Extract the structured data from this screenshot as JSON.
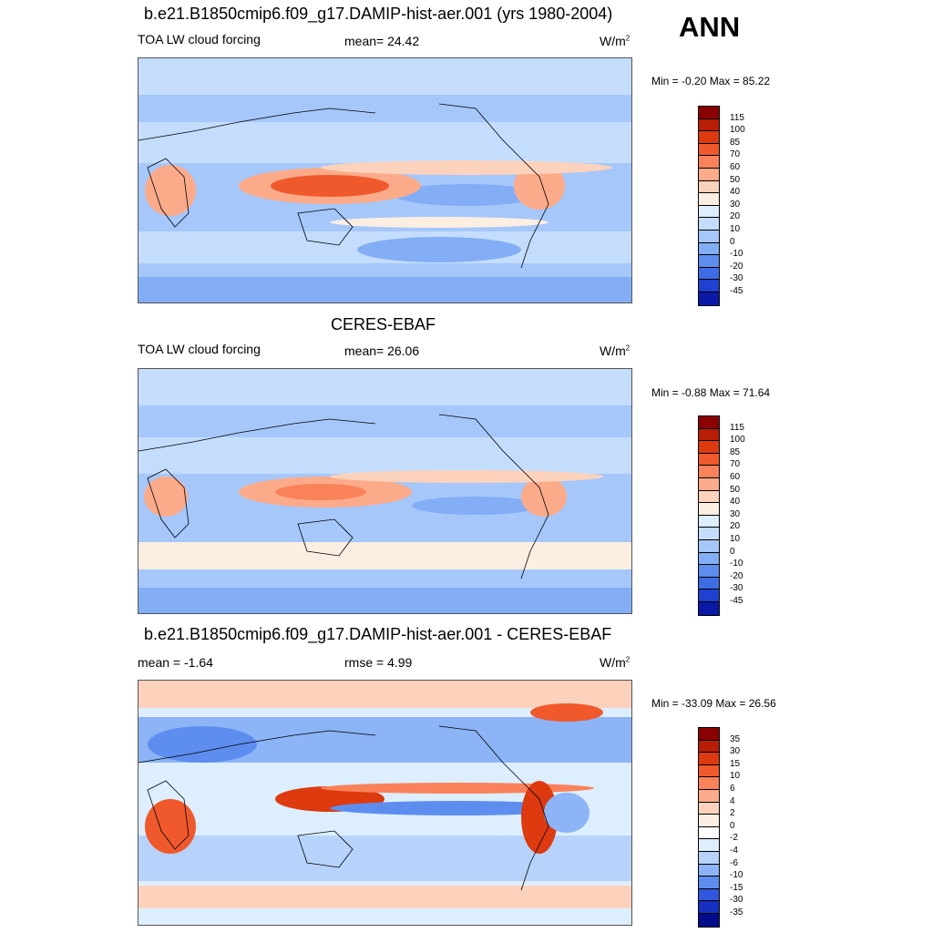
{
  "season": "ANN",
  "panels": [
    {
      "title": "b.e21.B1850cmip6.f09_g17.DAMIP-hist-aer.001 (yrs 1980-2004)",
      "left_label": "TOA LW cloud forcing",
      "center_label": "mean=  24.42",
      "units": "W/m",
      "units_sup": "2",
      "minmax": "Min =  -0.20 Max =  85.22",
      "colorbar": {
        "labels": [
          "115",
          "100",
          "85",
          "70",
          "60",
          "50",
          "40",
          "30",
          "20",
          "10",
          "0",
          "-10",
          "-20",
          "-30",
          "-45"
        ],
        "colors": [
          "#8b0000",
          "#b81d05",
          "#dd3a10",
          "#f0592c",
          "#f9825a",
          "#fcab8a",
          "#fdd2bc",
          "#fdeee2",
          "#ddeeff",
          "#c4ddfc",
          "#a6c7fa",
          "#83aef5",
          "#5d8eef",
          "#3e6ce5",
          "#1f40d0",
          "#0a1aa6"
        ]
      }
    },
    {
      "title": "CERES-EBAF",
      "left_label": "TOA LW cloud forcing",
      "center_label": "mean=  26.06",
      "units": "W/m",
      "units_sup": "2",
      "minmax": "Min =  -0.88 Max =  71.64",
      "colorbar": {
        "labels": [
          "115",
          "100",
          "85",
          "70",
          "60",
          "50",
          "40",
          "30",
          "20",
          "10",
          "0",
          "-10",
          "-20",
          "-30",
          "-45"
        ],
        "colors": [
          "#8b0000",
          "#b81d05",
          "#dd3a10",
          "#f0592c",
          "#f9825a",
          "#fcab8a",
          "#fdd2bc",
          "#fdeee2",
          "#ddeeff",
          "#c4ddfc",
          "#a6c7fa",
          "#83aef5",
          "#5d8eef",
          "#3e6ce5",
          "#1f40d0",
          "#0a1aa6"
        ]
      }
    },
    {
      "title": "b.e21.B1850cmip6.f09_g17.DAMIP-hist-aer.001 - CERES-EBAF",
      "left_label": "mean =  -1.64",
      "center_label": "rmse =   4.99",
      "units": "W/m",
      "units_sup": "2",
      "minmax": "Min = -33.09 Max =  26.56",
      "colorbar": {
        "labels": [
          "35",
          "30",
          "15",
          "10",
          "6",
          "4",
          "2",
          "0",
          "-2",
          "-4",
          "-6",
          "-10",
          "-15",
          "-30",
          "-35"
        ],
        "colors": [
          "#8b0000",
          "#b81d05",
          "#dd3a10",
          "#f0592c",
          "#f9825a",
          "#fcab8a",
          "#fdd2bc",
          "#fdeee2",
          "#ffffff",
          "#ddeeff",
          "#b8d3fb",
          "#8cb4f6",
          "#5d8eef",
          "#3058de",
          "#1530c0",
          "#000c8a"
        ]
      }
    }
  ]
}
